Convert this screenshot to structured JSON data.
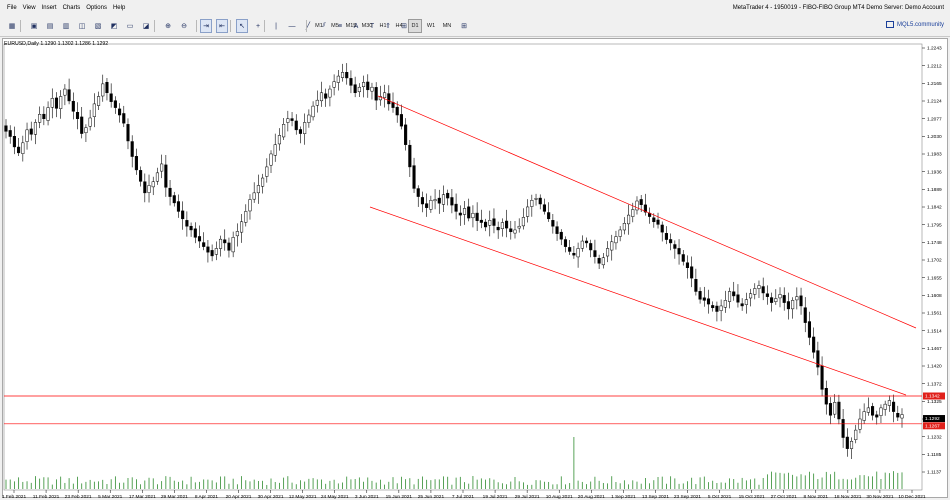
{
  "menu": {
    "items": [
      "File",
      "View",
      "Insert",
      "Charts",
      "Options",
      "Help"
    ],
    "title": "MetaTrader 4 - 1950019 - FIBO-FIBO Group MT4 Demo Server: Demo Account"
  },
  "toolbar": {
    "timeframes": [
      "M1",
      "M5",
      "M15",
      "M30",
      "H1",
      "H4",
      "D1",
      "W1",
      "MN"
    ],
    "active_timeframe": "D1",
    "community_label": "MQL5.community",
    "icons": [
      "new-chart-icon",
      "profiles-icon",
      "open-folder-icon",
      "save-icon",
      "market-watch-icon",
      "data-window-icon",
      "navigator-icon",
      "terminal-icon",
      "strategy-tester-icon",
      "zoom-in-icon",
      "zoom-out-icon",
      "autoscroll-icon",
      "chart-shift-icon",
      "cursor-icon",
      "crosshair-icon",
      "vertical-line-icon",
      "horizontal-line-icon",
      "trendline-icon",
      "equidistant-channel-icon",
      "fibonacci-icon",
      "text-icon",
      "label-icon",
      "arrows-icon",
      "periods-icon"
    ]
  },
  "chart": {
    "symbol_header": "EURUSD,Daily  1.1290 1.1302 1.1286 1.1292"
  },
  "chart_data": {
    "type": "candlestick",
    "symbol": "EURUSD",
    "timeframe": "Daily",
    "ylim": [
      1.1137,
      1.2243
    ],
    "price_ticks": [
      "1.2243",
      "1.2212",
      "1.2165",
      "1.2124",
      "1.2077",
      "1.2030",
      "1.1983",
      "1.1936",
      "1.1889",
      "1.1842",
      "1.1795",
      "1.1748",
      "1.1702",
      "1.1655",
      "1.1608",
      "1.1561",
      "1.1514",
      "1.1467",
      "1.1420",
      "1.1372",
      "1.1325",
      "1.1279",
      "1.1232",
      "1.1185",
      "1.1137"
    ],
    "date_ticks": [
      "1 Feb 2021",
      "11 Feb 2021",
      "23 Feb 2021",
      "5 Mar 2021",
      "17 Mar 2021",
      "29 Mar 2021",
      "8 Apr 2021",
      "20 Apr 2021",
      "30 Apr 2021",
      "12 May 2021",
      "24 May 2021",
      "3 Jun 2021",
      "15 Jun 2021",
      "25 Jun 2021",
      "7 Jul 2021",
      "19 Jul 2021",
      "29 Jul 2021",
      "10 Aug 2021",
      "20 Aug 2021",
      "1 Sep 2021",
      "13 Sep 2021",
      "23 Sep 2021",
      "5 Oct 2021",
      "15 Oct 2021",
      "27 Oct 2021",
      "8 Nov 2021",
      "18 Nov 2021",
      "30 Nov 2021",
      "10 Dec 2021"
    ],
    "closes": [
      1.2056,
      1.2042,
      1.2014,
      1.1998,
      1.2025,
      1.206,
      1.2048,
      1.208,
      1.2102,
      1.209,
      1.212,
      1.2145,
      1.2118,
      1.215,
      1.217,
      1.2138,
      1.211,
      1.209,
      1.205,
      1.2066,
      1.2092,
      1.213,
      1.215,
      1.2184,
      1.216,
      1.2136,
      1.212,
      1.21,
      1.2078,
      1.203,
      1.1988,
      1.1952,
      1.1921,
      1.189,
      1.191,
      1.192,
      1.1944,
      1.1968,
      1.1905,
      1.188,
      1.1863,
      1.184,
      1.182,
      1.18,
      1.179,
      1.177,
      1.176,
      1.1745,
      1.173,
      1.172,
      1.174,
      1.1765,
      1.1755,
      1.1735,
      1.177,
      1.1786,
      1.1812,
      1.184,
      1.1872,
      1.189,
      1.191,
      1.193,
      1.196,
      1.1995,
      1.202,
      1.2045,
      1.2075,
      1.209,
      1.2085,
      1.206,
      1.205,
      1.208,
      1.21,
      1.2124,
      1.214,
      1.216,
      1.2145,
      1.217,
      1.219,
      1.2205,
      1.2215,
      1.22,
      1.218,
      1.216,
      1.2175,
      1.2188,
      1.2168,
      1.2175,
      1.214,
      1.215,
      1.216,
      1.213,
      1.212,
      1.21,
      1.207,
      1.202,
      1.196,
      1.1902,
      1.188,
      1.186,
      1.185,
      1.187,
      1.1872,
      1.1862,
      1.1885,
      1.1876,
      1.1857,
      1.184,
      1.183,
      1.1848,
      1.1822,
      1.1835,
      1.1815,
      1.181,
      1.1798,
      1.1816,
      1.1802,
      1.179,
      1.181,
      1.1795,
      1.1785,
      1.179,
      1.18,
      1.1824,
      1.1852,
      1.187,
      1.1875,
      1.186,
      1.184,
      1.182,
      1.18,
      1.178,
      1.1765,
      1.1745,
      1.1732,
      1.1722,
      1.174,
      1.176,
      1.1755,
      1.1736,
      1.1718,
      1.17,
      1.1715,
      1.174,
      1.1758,
      1.1772,
      1.179,
      1.1808,
      1.183,
      1.1845,
      1.1868,
      1.1858,
      1.1838,
      1.1826,
      1.1812,
      1.1805,
      1.1784,
      1.1764,
      1.1755,
      1.174,
      1.1725,
      1.1705,
      1.1688,
      1.166,
      1.1624,
      1.1603,
      1.16,
      1.159,
      1.158,
      1.157,
      1.1585,
      1.16,
      1.1624,
      1.1612,
      1.1595,
      1.1585,
      1.1602,
      1.1618,
      1.1632,
      1.164,
      1.162,
      1.161,
      1.1594,
      1.1605,
      1.1616,
      1.1594,
      1.1577,
      1.16,
      1.161,
      1.1585,
      1.154,
      1.15,
      1.146,
      1.142,
      1.136,
      1.132,
      1.129,
      1.1325,
      1.128,
      1.123,
      1.12,
      1.122,
      1.125,
      1.128,
      1.13,
      1.131,
      1.129,
      1.1285,
      1.131,
      1.132,
      1.133,
      1.13,
      1.1285,
      1.1292
    ]
  },
  "overlays": {
    "upper_horizontal_label": "1.1342",
    "last_price_label": "1.1292",
    "lower_horizontal_label": "1.1267"
  },
  "colors": {
    "chart_bg": "#ffffff",
    "candle": "#000000",
    "volume": "#2e8b2e",
    "trendline": "#ff0000",
    "badge_red": "#e0201a",
    "badge_dark": "#000000"
  }
}
